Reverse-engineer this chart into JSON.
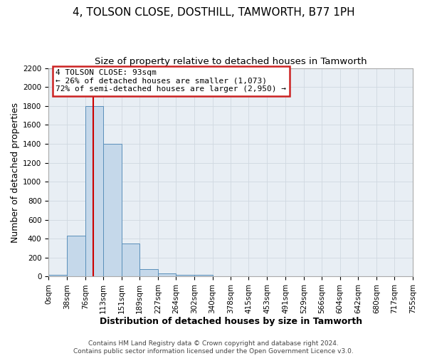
{
  "title": "4, TOLSON CLOSE, DOSTHILL, TAMWORTH, B77 1PH",
  "subtitle": "Size of property relative to detached houses in Tamworth",
  "xlabel": "Distribution of detached houses by size in Tamworth",
  "ylabel": "Number of detached properties",
  "footer_lines": [
    "Contains HM Land Registry data © Crown copyright and database right 2024.",
    "Contains public sector information licensed under the Open Government Licence v3.0."
  ],
  "bar_edges": [
    0,
    38,
    76,
    113,
    151,
    189,
    227,
    264,
    302,
    340,
    378,
    415,
    453,
    491,
    529,
    566,
    604,
    642,
    680,
    717,
    755
  ],
  "bar_heights": [
    20,
    430,
    1800,
    1400,
    350,
    80,
    30,
    15,
    15,
    0,
    0,
    0,
    0,
    0,
    0,
    0,
    0,
    0,
    0,
    0
  ],
  "bar_color": "#c5d8ea",
  "bar_edge_color": "#5a8fba",
  "red_line_x": 93,
  "ylim": [
    0,
    2200
  ],
  "yticks": [
    0,
    200,
    400,
    600,
    800,
    1000,
    1200,
    1400,
    1600,
    1800,
    2000,
    2200
  ],
  "annotation_title": "4 TOLSON CLOSE: 93sqm",
  "annotation_line1": "← 26% of detached houses are smaller (1,073)",
  "annotation_line2": "72% of semi-detached houses are larger (2,950) →",
  "grid_color": "#d0d8e0",
  "background_color": "#e8eef4",
  "title_fontsize": 11,
  "subtitle_fontsize": 9.5,
  "xlabel_fontsize": 9,
  "ylabel_fontsize": 9,
  "tick_fontsize": 7.5,
  "annotation_fontsize": 8,
  "footer_fontsize": 6.5
}
